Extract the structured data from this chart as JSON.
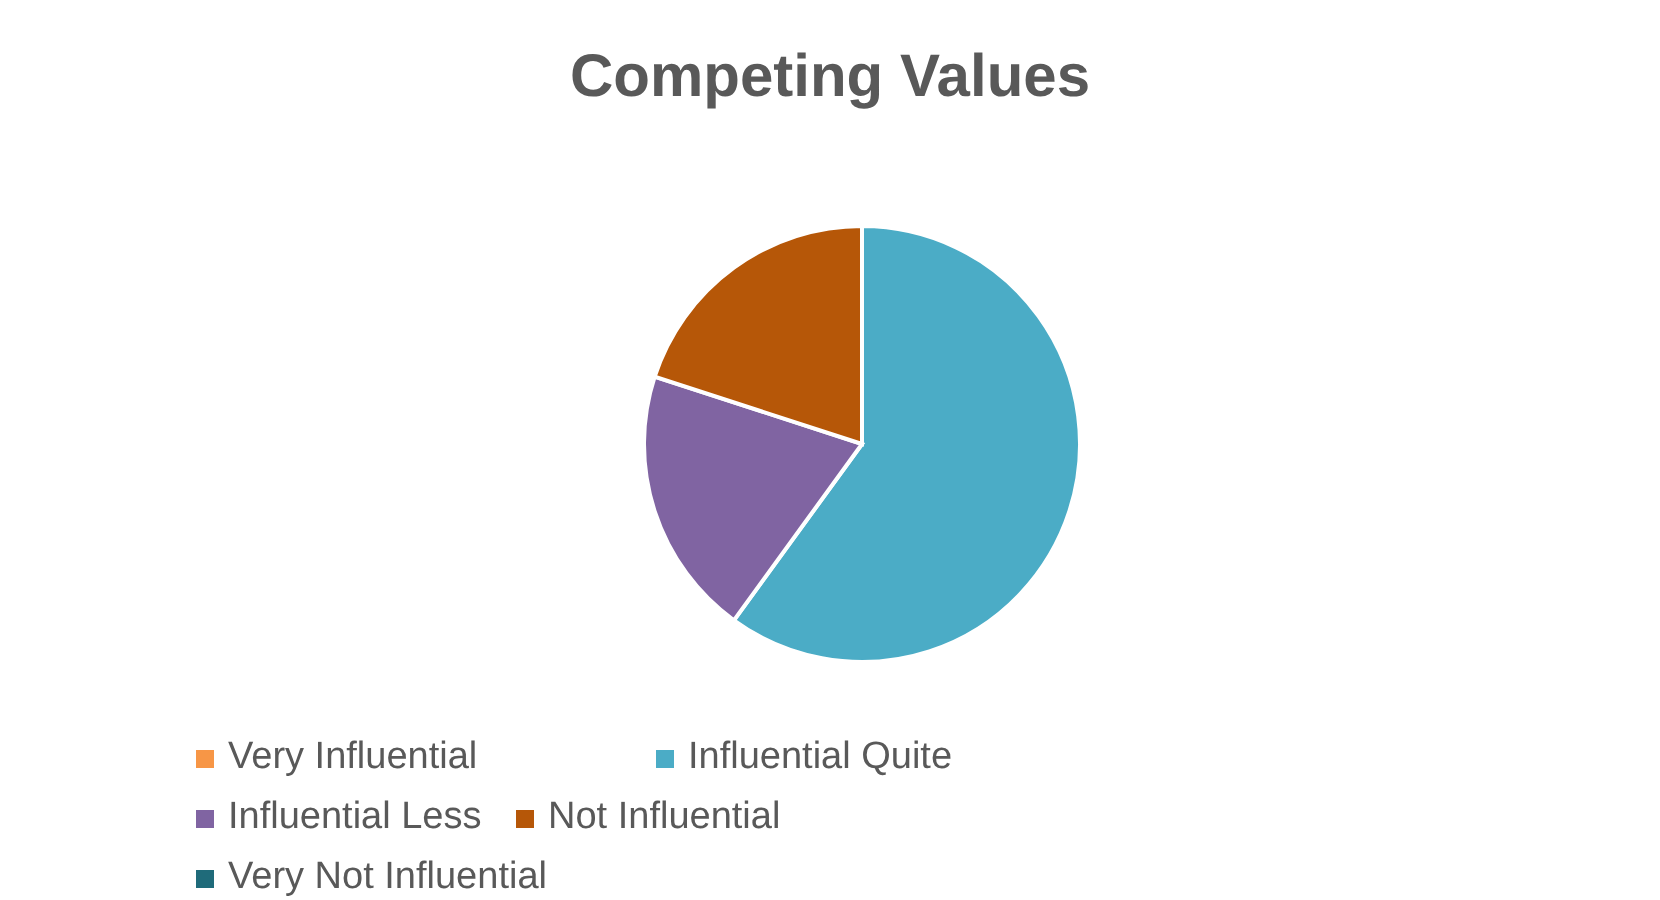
{
  "chart_data": {
    "type": "pie",
    "title": "Competing Values",
    "categories": [
      "Very Influential",
      "Influential Quite",
      "Influential Less",
      "Not Influential",
      "Very Not Influential"
    ],
    "values": [
      0,
      60,
      20,
      20,
      0
    ],
    "colors": [
      "#f79646",
      "#4bacc6",
      "#8064a2",
      "#b65708",
      "#1f6b7a"
    ],
    "legend": "bottom"
  }
}
